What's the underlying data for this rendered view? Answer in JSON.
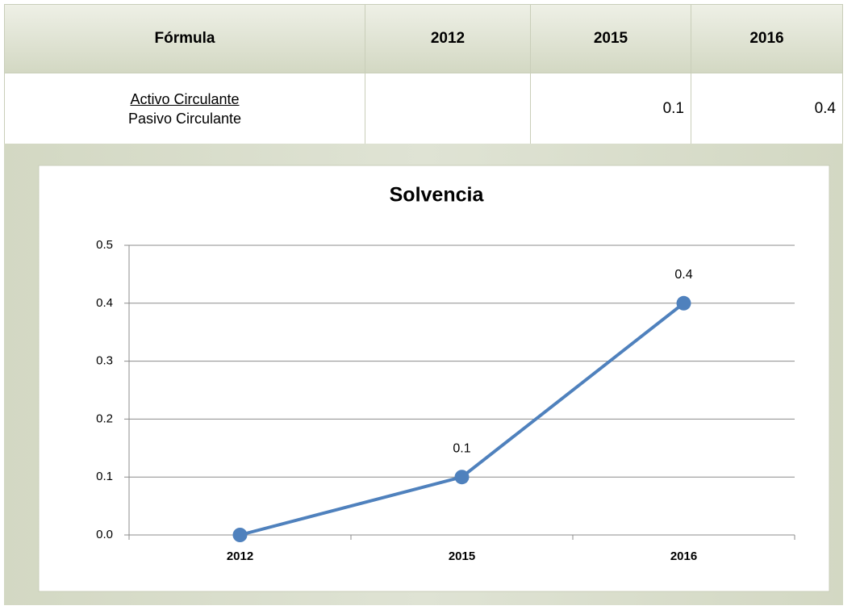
{
  "table": {
    "header": [
      "Fórmula",
      "2012",
      "2015",
      "2016"
    ],
    "rows": [
      {
        "numerator": "Activo Circulante",
        "denominator": "Pasivo Circulante",
        "values": [
          null,
          0.1,
          0.4
        ]
      }
    ]
  },
  "chart_data": {
    "type": "line",
    "title": "Solvencia",
    "categories": [
      "2012",
      "2015",
      "2016"
    ],
    "series": [
      {
        "color": "#4f81bd",
        "values": [
          0,
          0.1,
          0.4
        ],
        "value_labels": [
          null,
          "0.1",
          "0.4"
        ]
      }
    ],
    "ylim": [
      0,
      0.5
    ],
    "yticks": [
      {
        "value": 0,
        "label": "0.0"
      },
      0.1,
      0.2,
      0.3,
      0.4,
      0.5
    ],
    "grid": true
  }
}
